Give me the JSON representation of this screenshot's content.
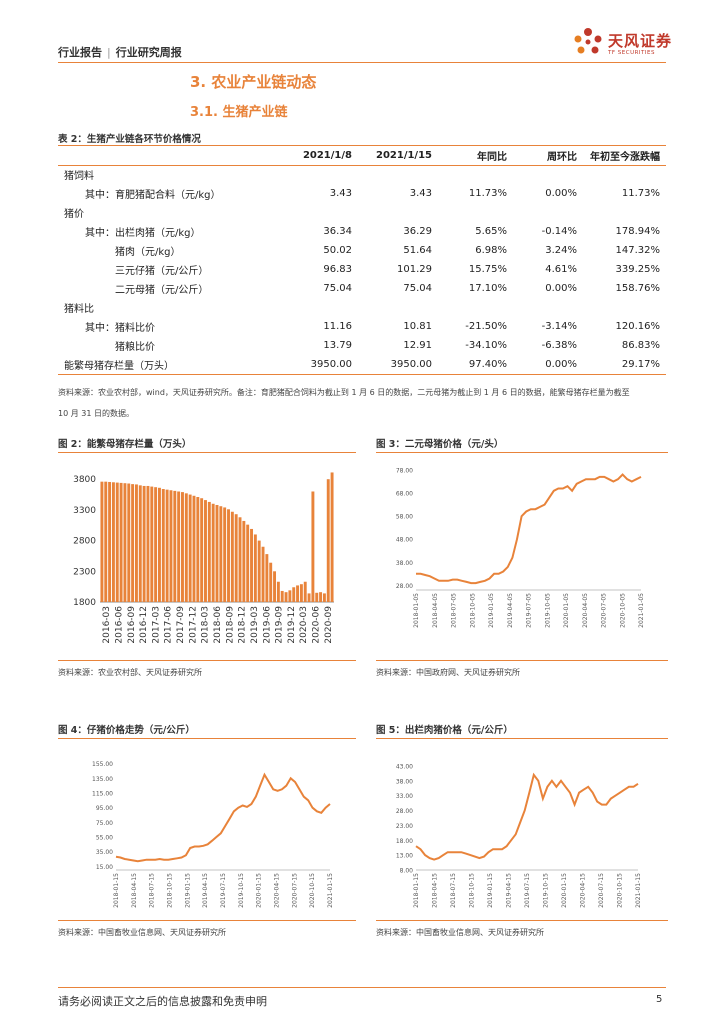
{
  "header": {
    "category": "行业报告",
    "sub": "行业研究周报",
    "separator": "|",
    "brand": "天风证券",
    "brand_en": "TF SECURITIES"
  },
  "section": {
    "h3": "3. 农业产业链动态",
    "h31": "3.1. 生猪产业链"
  },
  "table": {
    "title": "表 2：生猪产业链各环节价格情况",
    "headers": [
      "",
      "2021/1/8",
      "2021/1/15",
      "年同比",
      "周环比",
      "年初至今涨跌幅"
    ],
    "rows": [
      {
        "label": "猪饲料",
        "cls": "lbl",
        "vals": [
          "",
          "",
          "",
          "",
          ""
        ]
      },
      {
        "label": "其中：育肥猪配合料（元/kg）",
        "cls": "lbl sub",
        "vals": [
          "3.43",
          "3.43",
          "11.73%",
          "0.00%",
          "11.73%"
        ]
      },
      {
        "label": "猪价",
        "cls": "lbl",
        "vals": [
          "",
          "",
          "",
          "",
          ""
        ]
      },
      {
        "label": "其中：出栏肉猪（元/kg）",
        "cls": "lbl sub",
        "vals": [
          "36.34",
          "36.29",
          "5.65%",
          "-0.14%",
          "178.94%"
        ]
      },
      {
        "label": "猪肉（元/kg）",
        "cls": "lbl sub2",
        "vals": [
          "50.02",
          "51.64",
          "6.98%",
          "3.24%",
          "147.32%"
        ]
      },
      {
        "label": "三元仔猪（元/公斤）",
        "cls": "lbl sub2",
        "vals": [
          "96.83",
          "101.29",
          "15.75%",
          "4.61%",
          "339.25%"
        ]
      },
      {
        "label": "二元母猪（元/公斤）",
        "cls": "lbl sub2",
        "vals": [
          "75.04",
          "75.04",
          "17.10%",
          "0.00%",
          "158.76%"
        ]
      },
      {
        "label": "猪料比",
        "cls": "lbl",
        "vals": [
          "",
          "",
          "",
          "",
          ""
        ]
      },
      {
        "label": "其中：猪料比价",
        "cls": "lbl sub",
        "vals": [
          "11.16",
          "10.81",
          "-21.50%",
          "-3.14%",
          "120.16%"
        ]
      },
      {
        "label": "猪粮比价",
        "cls": "lbl sub2",
        "vals": [
          "13.79",
          "12.91",
          "-34.10%",
          "-6.38%",
          "86.83%"
        ]
      },
      {
        "label": "能繁母猪存栏量（万头）",
        "cls": "lbl",
        "vals": [
          "3950.00",
          "3950.00",
          "97.40%",
          "0.00%",
          "29.17%"
        ]
      }
    ],
    "note_line1": "资料来源：农业农村部，wind，天风证券研究所。备注：育肥猪配合饲料为截止到 1 月 6 日的数据，二元母猪为截止到 1 月 6 日的数据，能繁母猪存栏量为截至",
    "note_line2": "10 月 31 日的数据。"
  },
  "fig2": {
    "title": "图 2：能繁母猪存栏量（万头）",
    "source": "资料来源：农业农村部、天风证券研究所",
    "chart_data": {
      "type": "bar",
      "title": "能繁母猪存栏量（万头）",
      "ylim": [
        1800,
        3950
      ],
      "yticks": [
        "3800",
        "3300",
        "2800",
        "2300",
        "1800"
      ],
      "ytick_vals": [
        3800,
        3300,
        2800,
        2300,
        1800
      ],
      "xticks": [
        "2016-03",
        "2016-06",
        "2016-09",
        "2016-12",
        "2017-03",
        "2017-06",
        "2017-09",
        "2017-12",
        "2018-03",
        "2018-06",
        "2018-09",
        "2018-12",
        "2019-03",
        "2019-06",
        "2019-09",
        "2019-12",
        "2020-03",
        "2020-06",
        "2020-09"
      ],
      "values": [
        3760,
        3760,
        3755,
        3750,
        3745,
        3740,
        3735,
        3730,
        3720,
        3715,
        3700,
        3690,
        3690,
        3680,
        3670,
        3660,
        3640,
        3630,
        3620,
        3610,
        3600,
        3590,
        3570,
        3550,
        3530,
        3510,
        3490,
        3460,
        3430,
        3400,
        3380,
        3360,
        3340,
        3310,
        3270,
        3230,
        3180,
        3120,
        3060,
        2990,
        2900,
        2800,
        2700,
        2580,
        2440,
        2300,
        2130,
        1980,
        1960,
        1990,
        2040,
        2070,
        2090,
        2130,
        1940,
        3600,
        1950,
        1960,
        1940,
        3800,
        3910
      ]
    }
  },
  "fig3": {
    "title": "图 3：二元母猪价格（元/头）",
    "source": "资料来源：中国政府网、天风证券研究所",
    "chart_data": {
      "type": "line",
      "title": "二元母猪价格（元/头）",
      "ylim": [
        26,
        78
      ],
      "yticks": [
        "78.00",
        "68.00",
        "58.00",
        "48.00",
        "38.00",
        "28.00"
      ],
      "ytick_vals": [
        78,
        68,
        58,
        48,
        38,
        28
      ],
      "xticks": [
        "2018-01-05",
        "2018-04-05",
        "2018-07-05",
        "2018-10-05",
        "2019-01-05",
        "2019-04-05",
        "2019-07-05",
        "2019-10-05",
        "2020-01-05",
        "2020-04-05",
        "2020-07-05",
        "2020-10-05",
        "2021-01-05"
      ],
      "series": [
        {
          "name": "二元母猪",
          "values": [
            33,
            33,
            32.5,
            32,
            31,
            30,
            30,
            30,
            30.5,
            30.5,
            30,
            29.5,
            29,
            29,
            29.5,
            30,
            31,
            33,
            33,
            34,
            36,
            40,
            48,
            58,
            60,
            61,
            61,
            62,
            63,
            66,
            69,
            70,
            70,
            71,
            69,
            72,
            73,
            74,
            74,
            74,
            75,
            75,
            74,
            73,
            74,
            76,
            74,
            73,
            74,
            75
          ]
        }
      ]
    }
  },
  "fig4": {
    "title": "图 4：仔猪价格走势（元/公斤）",
    "source": "资料来源：中国畜牧业信息网、天风证券研究所",
    "chart_data": {
      "type": "line",
      "title": "仔猪价格走势（元/公斤）",
      "ylim": [
        10,
        160
      ],
      "yticks": [
        "155.00",
        "135.00",
        "115.00",
        "95.00",
        "75.00",
        "55.00",
        "35.00",
        "15.00"
      ],
      "ytick_vals": [
        155,
        135,
        115,
        95,
        75,
        55,
        35,
        15
      ],
      "xticks": [
        "2018-01-15",
        "2018-04-15",
        "2018-07-15",
        "2018-10-15",
        "2019-01-15",
        "2019-04-15",
        "2019-07-15",
        "2019-10-15",
        "2020-01-15",
        "2020-04-15",
        "2020-07-15",
        "2020-10-15",
        "2021-01-15"
      ],
      "series": [
        {
          "name": "仔猪",
          "values": [
            28,
            27,
            25,
            24,
            23,
            22,
            23,
            24,
            24,
            24,
            25,
            24,
            24,
            25,
            26,
            27,
            30,
            40,
            42,
            42,
            43,
            45,
            50,
            55,
            60,
            70,
            80,
            90,
            95,
            98,
            96,
            100,
            110,
            125,
            140,
            130,
            120,
            118,
            120,
            125,
            135,
            130,
            120,
            110,
            105,
            95,
            90,
            88,
            95,
            100
          ]
        }
      ]
    }
  },
  "fig5": {
    "title": "图 5：出栏肉猪价格（元/公斤）",
    "source": "资料来源：中国畜牧业信息网、天风证券研究所",
    "chart_data": {
      "type": "line",
      "title": "出栏肉猪价格（元/公斤）",
      "ylim": [
        8,
        45
      ],
      "yticks": [
        "43.00",
        "38.00",
        "33.00",
        "28.00",
        "23.00",
        "18.00",
        "13.00",
        "8.00"
      ],
      "ytick_vals": [
        43,
        38,
        33,
        28,
        23,
        18,
        13,
        8
      ],
      "xticks": [
        "2018-01-15",
        "2018-04-15",
        "2018-07-15",
        "2018-10-15",
        "2019-01-15",
        "2019-04-15",
        "2019-07-15",
        "2019-10-15",
        "2020-01-15",
        "2020-04-15",
        "2020-07-15",
        "2020-10-15",
        "2021-01-15"
      ],
      "series": [
        {
          "name": "出栏肉猪",
          "values": [
            16,
            15,
            13,
            12,
            11.5,
            12,
            13,
            14,
            14,
            14,
            14,
            13.5,
            13,
            12.5,
            12,
            12.5,
            14,
            15,
            15,
            15,
            16,
            18,
            20,
            24,
            28,
            34,
            40,
            38,
            32,
            36,
            38,
            36,
            38,
            36,
            34,
            30,
            34,
            35,
            36,
            34,
            31,
            30,
            30,
            32,
            33,
            34,
            35,
            36,
            36,
            37
          ]
        }
      ]
    }
  },
  "footer": {
    "disclaimer": "请务必阅读正文之后的信息披露和免责申明",
    "page": "5"
  }
}
